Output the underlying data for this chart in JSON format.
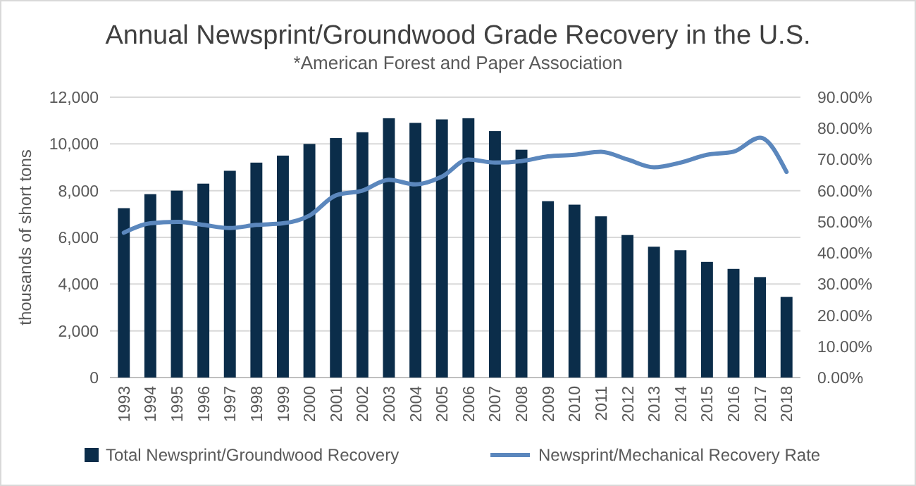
{
  "chart_data": {
    "type": "bar",
    "title": "Annual Newsprint/Groundwood  Grade Recovery in the U.S.",
    "subtitle": "*American Forest and Paper Association",
    "ylabel": "thousands of short tons",
    "categories": [
      "1993",
      "1994",
      "1995",
      "1996",
      "1997",
      "1998",
      "1999",
      "2000",
      "2001",
      "2002",
      "2003",
      "2004",
      "2005",
      "2006",
      "2007",
      "2008",
      "2009",
      "2010",
      "2011",
      "2012",
      "2013",
      "2014",
      "2015",
      "2016",
      "2017",
      "2018"
    ],
    "series": [
      {
        "name": "Total Newsprint/Groundwood Recovery",
        "color": "#0b2d4a",
        "values": [
          7250,
          7850,
          8000,
          8300,
          8850,
          9200,
          9500,
          10000,
          10250,
          10500,
          11100,
          10900,
          11050,
          11100,
          10550,
          9750,
          7550,
          7400,
          6900,
          6100,
          5600,
          5450,
          4950,
          4650,
          4300,
          3450
        ]
      },
      {
        "name": "Newsprint/Mechanical Recovery Rate",
        "type": "line",
        "axis": "y2",
        "color": "#5b87bd",
        "values": [
          46.5,
          49.5,
          50,
          49,
          48,
          49,
          49.5,
          52,
          58.5,
          60,
          63.5,
          62,
          64.5,
          70,
          69,
          69.5,
          71,
          71.5,
          72.5,
          70,
          67.5,
          69,
          71.5,
          72.5,
          77,
          66
        ]
      }
    ],
    "ylim": [
      0,
      12000
    ],
    "yticks": [
      {
        "value": 0,
        "label": "0"
      },
      {
        "value": 2000,
        "label": "2,000"
      },
      {
        "value": 4000,
        "label": "4,000"
      },
      {
        "value": 6000,
        "label": "6,000"
      },
      {
        "value": 8000,
        "label": "8,000"
      },
      {
        "value": 10000,
        "label": "10,000"
      },
      {
        "value": 12000,
        "label": "12,000"
      }
    ],
    "y2lim": [
      0,
      90
    ],
    "y2ticks": [
      {
        "value": 0,
        "label": "0.00%"
      },
      {
        "value": 10,
        "label": "10.00%"
      },
      {
        "value": 20,
        "label": "20.00%"
      },
      {
        "value": 30,
        "label": "30.00%"
      },
      {
        "value": 40,
        "label": "40.00%"
      },
      {
        "value": 50,
        "label": "50.00%"
      },
      {
        "value": 60,
        "label": "60.00%"
      },
      {
        "value": 70,
        "label": "70.00%"
      },
      {
        "value": 80,
        "label": "80.00%"
      },
      {
        "value": 90,
        "label": "90.00%"
      }
    ],
    "grid": "y",
    "legend": "bottom",
    "marker": "none",
    "line_style": "solid"
  }
}
